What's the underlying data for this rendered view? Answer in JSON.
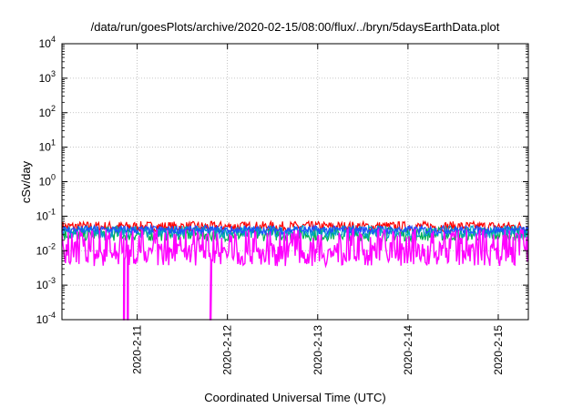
{
  "chart_data": {
    "type": "line",
    "title": "/data/run/goesPlots/archive/2020-02-15/08:00/flux/../bryn/5daysEarthData.plot",
    "xlabel": "Coordinated Universal Time (UTC)",
    "ylabel": "cSv/day",
    "y_scale": "log",
    "ylim": [
      0.0001,
      10000
    ],
    "y_ticks": [
      {
        "base": "10",
        "exp": "-4",
        "value": 0.0001
      },
      {
        "base": "10",
        "exp": "-3",
        "value": 0.001
      },
      {
        "base": "10",
        "exp": "-2",
        "value": 0.01
      },
      {
        "base": "10",
        "exp": "-1",
        "value": 0.1
      },
      {
        "base": "10",
        "exp": "0",
        "value": 1
      },
      {
        "base": "10",
        "exp": "1",
        "value": 10
      },
      {
        "base": "10",
        "exp": "2",
        "value": 100
      },
      {
        "base": "10",
        "exp": "3",
        "value": 1000
      },
      {
        "base": "10",
        "exp": "4",
        "value": 10000
      }
    ],
    "xlim": [
      "2020-02-10T04:00",
      "2020-02-15T08:00"
    ],
    "x_ticks": [
      {
        "label": "2020-2-11",
        "value": "2020-02-11T00:00"
      },
      {
        "label": "2020-2-12",
        "value": "2020-02-12T00:00"
      },
      {
        "label": "2020-2-13",
        "value": "2020-02-13T00:00"
      },
      {
        "label": "2020-2-14",
        "value": "2020-02-14T00:00"
      },
      {
        "label": "2020-2-15",
        "value": "2020-02-15T00:00"
      }
    ],
    "grid": true,
    "legend": "none",
    "series": [
      {
        "color": "#ff0000",
        "typical": 0.05,
        "spread": 0.15,
        "dropouts": []
      },
      {
        "color": "#00b050",
        "typical": 0.03,
        "spread": 0.2,
        "dropouts": []
      },
      {
        "color": "#00a0c8",
        "typical": 0.035,
        "spread": 0.18,
        "dropouts": []
      },
      {
        "color": "#1e50ff",
        "typical": 0.04,
        "spread": 0.12,
        "dropouts": []
      },
      {
        "color": "#ff00ff",
        "typical": 0.008,
        "spread": 0.35,
        "dropouts": [
          "2020-02-10T20:30",
          "2020-02-10T21:30",
          "2020-02-11T19:30"
        ]
      }
    ]
  }
}
